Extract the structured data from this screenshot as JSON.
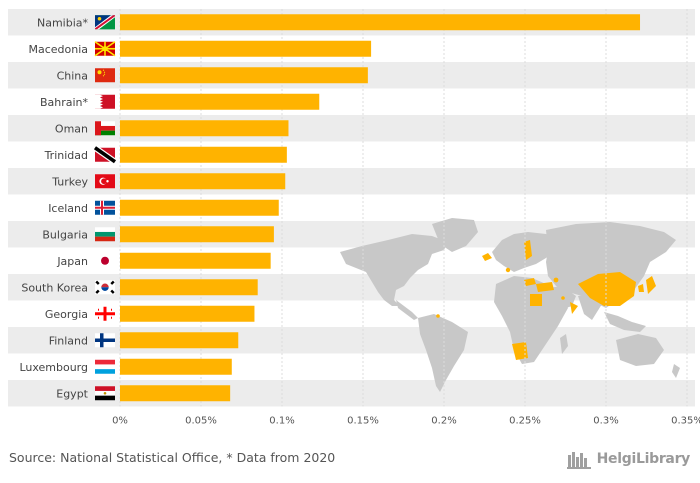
{
  "chart_data": {
    "type": "bar",
    "orientation": "horizontal",
    "categories": [
      "Namibia*",
      "Macedonia",
      "China",
      "Bahrain*",
      "Oman",
      "Trinidad",
      "Turkey",
      "Iceland",
      "Bulgaria",
      "Japan",
      "South Korea",
      "Georgia",
      "Finland",
      "Luxembourg",
      "Egypt"
    ],
    "values": [
      0.321,
      0.155,
      0.153,
      0.123,
      0.104,
      0.103,
      0.102,
      0.098,
      0.095,
      0.093,
      0.085,
      0.083,
      0.073,
      0.069,
      0.068
    ],
    "x_ticks": [
      "0%",
      "0.05%",
      "0.1%",
      "0.15%",
      "0.2%",
      "0.25%",
      "0.3%",
      "0.35%"
    ],
    "xlim": [
      0,
      0.35
    ],
    "grid": true,
    "bar_color": "#ffb300",
    "band_color": "#ececec",
    "map_land_color": "#c8c8c8",
    "map_highlight_color": "#ffb300",
    "flags": [
      "namibia-flag-icon",
      "macedonia-flag-icon",
      "china-flag-icon",
      "bahrain-flag-icon",
      "oman-flag-icon",
      "trinidad-flag-icon",
      "turkey-flag-icon",
      "iceland-flag-icon",
      "bulgaria-flag-icon",
      "japan-flag-icon",
      "south-korea-flag-icon",
      "georgia-flag-icon",
      "finland-flag-icon",
      "luxembourg-flag-icon",
      "egypt-flag-icon"
    ]
  },
  "footer": {
    "source": "Source: National Statistical Office, * Data from 2020",
    "brand": "HelgiLibrary",
    "brand_icon": "library-logo-icon"
  }
}
